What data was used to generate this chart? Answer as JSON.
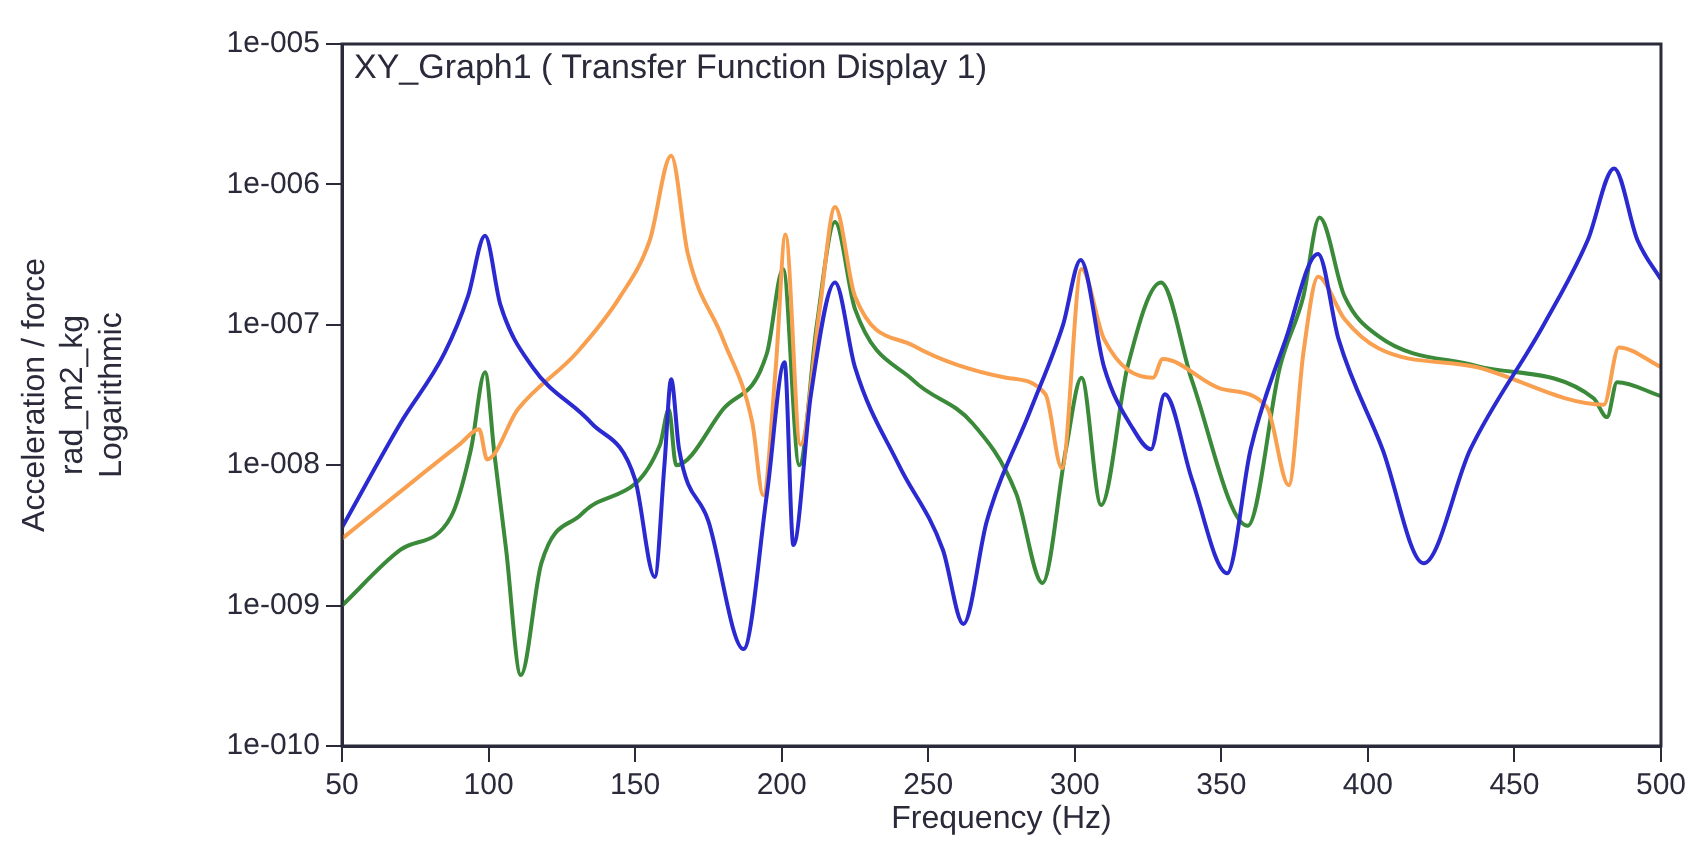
{
  "chart_data": {
    "type": "line",
    "title": "XY_Graph1 ( Transfer Function Display 1)",
    "xlabel": "Frequency (Hz)",
    "ylabel": "Acceleration / force\nrad_m2_kg\nLogarithmic",
    "log": "y",
    "xlim": [
      50,
      500
    ],
    "xticks": [
      50,
      100,
      150,
      200,
      250,
      300,
      350,
      400,
      450,
      500
    ],
    "ylim": [
      1e-10,
      1e-05
    ],
    "yticks": [
      {
        "value": 1e-10,
        "label": "1e-010"
      },
      {
        "value": 1e-09,
        "label": "1e-009"
      },
      {
        "value": 1e-08,
        "label": "1e-008"
      },
      {
        "value": 1e-07,
        "label": "1e-007"
      },
      {
        "value": 1e-06,
        "label": "1e-006"
      },
      {
        "value": 1e-05,
        "label": "1e-005"
      }
    ],
    "series": [
      {
        "color": "#2a2ad0",
        "x": [
          50,
          70,
          85,
          93,
          98.8,
          104,
          115,
          135,
          150,
          156.7,
          160,
          162.3,
          165,
          175,
          187,
          195,
          201,
          204,
          210,
          218.2,
          225,
          240,
          255,
          262,
          270,
          285,
          296,
          302,
          310,
          320,
          326,
          330.7,
          340,
          352,
          360,
          372,
          383,
          390,
          405,
          419,
          435,
          460,
          475,
          484,
          492,
          500
        ],
        "values": [
          3.6e-09,
          2e-08,
          6.3e-08,
          1.6e-07,
          4.3e-07,
          1.4e-07,
          5e-08,
          2e-08,
          7.9e-09,
          1.6e-09,
          1e-08,
          4.1e-08,
          1.3e-08,
          4e-09,
          4.9e-10,
          6.3e-09,
          5.4e-08,
          2.7e-09,
          3.2e-08,
          2e-07,
          5e-08,
          1e-08,
          2.5e-09,
          7.4e-10,
          4e-09,
          2.5e-08,
          1e-07,
          2.9e-07,
          5e-08,
          1.8e-08,
          1.3e-08,
          3.2e-08,
          7.9e-09,
          1.7e-09,
          1.3e-08,
          7.9e-08,
          3.2e-07,
          7.9e-08,
          1.3e-08,
          2e-09,
          1.3e-08,
          1e-07,
          4e-07,
          1.3e-06,
          4e-07,
          2.1e-07
        ]
      },
      {
        "color": "#f9a050",
        "x": [
          50,
          75,
          90,
          96.8,
          99.5,
          110,
          130,
          145,
          155,
          162.3,
          168,
          180,
          190,
          193.7,
          198,
          201.3,
          206.4,
          213,
          218.2,
          225,
          245,
          276.6,
          290,
          295.6,
          302.3,
          310,
          326.7,
          330,
          350,
          365.5,
          373,
          378,
          383,
          392,
          403.6,
          437,
          480.5,
          485.6,
          500
        ],
        "values": [
          3e-09,
          7.9e-09,
          1.4e-08,
          1.8e-08,
          1.1e-08,
          2.5e-08,
          6.3e-08,
          1.6e-07,
          4e-07,
          1.6e-06,
          3.2e-07,
          7.9e-08,
          2e-08,
          6.1e-09,
          5e-08,
          4.4e-07,
          1.4e-08,
          1.3e-07,
          6.9e-07,
          1.6e-07,
          7.1e-08,
          4.2e-08,
          3.2e-08,
          9.5e-09,
          2.5e-07,
          7.9e-08,
          4.2e-08,
          5.7e-08,
          3.5e-08,
          2.6e-08,
          7.2e-09,
          6.3e-08,
          2.2e-07,
          1.1e-07,
          6.8e-08,
          5e-08,
          2.7e-08,
          6.9e-08,
          5e-08
        ]
      },
      {
        "color": "#3a8a3a",
        "x": [
          50,
          70,
          87.2,
          94,
          98.8,
          102,
          106,
          111,
          118,
          131.8,
          158.5,
          161.5,
          164,
          180,
          195,
          200.5,
          206,
          212,
          218.2,
          225,
          245,
          265,
          280,
          289,
          297,
          302.3,
          309,
          318,
          329.4,
          340,
          359,
          370,
          378,
          383.5,
          392,
          403.6,
          437,
          477,
          481.6,
          485,
          500
        ],
        "values": [
          1e-09,
          2.5e-09,
          4.3e-09,
          1.3e-08,
          4.6e-08,
          1.2e-08,
          2.5e-09,
          3.2e-10,
          2e-09,
          4.5e-09,
          1.4e-08,
          2.5e-08,
          1e-08,
          2.5e-08,
          6.3e-08,
          2.5e-07,
          1e-08,
          1e-07,
          5.4e-07,
          1.3e-07,
          4e-08,
          2e-08,
          6.3e-09,
          1.45e-09,
          1.3e-08,
          4.2e-08,
          5.2e-09,
          5e-08,
          2e-07,
          4e-08,
          3.7e-09,
          5e-08,
          1.6e-07,
          5.8e-07,
          1.6e-07,
          8.3e-08,
          5.1e-08,
          3e-08,
          2.2e-08,
          3.9e-08,
          3.1e-08
        ]
      }
    ]
  }
}
